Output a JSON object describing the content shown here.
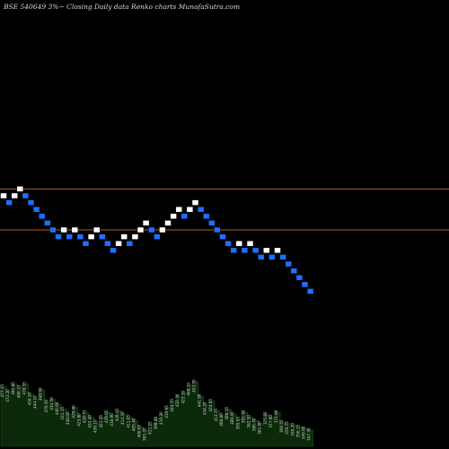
{
  "title": "BSE 540649 3%~  Closing Daily data  Renko  charts MunafaSutra.com",
  "chart_data": {
    "type": "renko",
    "title": "BSE 540649 3%~  Closing Daily data  Renko  charts MunafaSutra.com",
    "colors": {
      "up": "#ffffff",
      "down": "#1e6fff",
      "reference_line": "#b35b1e",
      "volume": "#0a2a0a"
    },
    "bricks": [
      {
        "level": 0,
        "dir": "up"
      },
      {
        "level": -1,
        "dir": "down"
      },
      {
        "level": 0,
        "dir": "up"
      },
      {
        "level": 1,
        "dir": "up"
      },
      {
        "level": 0,
        "dir": "down"
      },
      {
        "level": -1,
        "dir": "down"
      },
      {
        "level": -2,
        "dir": "down"
      },
      {
        "level": -3,
        "dir": "down"
      },
      {
        "level": -4,
        "dir": "down"
      },
      {
        "level": -5,
        "dir": "down"
      },
      {
        "level": -6,
        "dir": "down"
      },
      {
        "level": -5,
        "dir": "up"
      },
      {
        "level": -6,
        "dir": "down"
      },
      {
        "level": -5,
        "dir": "up"
      },
      {
        "level": -6,
        "dir": "down"
      },
      {
        "level": -7,
        "dir": "down"
      },
      {
        "level": -6,
        "dir": "up"
      },
      {
        "level": -5,
        "dir": "up"
      },
      {
        "level": -6,
        "dir": "down"
      },
      {
        "level": -7,
        "dir": "down"
      },
      {
        "level": -8,
        "dir": "down"
      },
      {
        "level": -7,
        "dir": "up"
      },
      {
        "level": -6,
        "dir": "up"
      },
      {
        "level": -7,
        "dir": "down"
      },
      {
        "level": -6,
        "dir": "up"
      },
      {
        "level": -5,
        "dir": "up"
      },
      {
        "level": -4,
        "dir": "up"
      },
      {
        "level": -5,
        "dir": "down"
      },
      {
        "level": -6,
        "dir": "down"
      },
      {
        "level": -5,
        "dir": "up"
      },
      {
        "level": -4,
        "dir": "up"
      },
      {
        "level": -3,
        "dir": "up"
      },
      {
        "level": -2,
        "dir": "up"
      },
      {
        "level": -3,
        "dir": "down"
      },
      {
        "level": -2,
        "dir": "up"
      },
      {
        "level": -1,
        "dir": "up"
      },
      {
        "level": -2,
        "dir": "down"
      },
      {
        "level": -3,
        "dir": "down"
      },
      {
        "level": -4,
        "dir": "down"
      },
      {
        "level": -5,
        "dir": "down"
      },
      {
        "level": -6,
        "dir": "down"
      },
      {
        "level": -7,
        "dir": "down"
      },
      {
        "level": -8,
        "dir": "down"
      },
      {
        "level": -7,
        "dir": "up"
      },
      {
        "level": -8,
        "dir": "down"
      },
      {
        "level": -7,
        "dir": "up"
      },
      {
        "level": -8,
        "dir": "down"
      },
      {
        "level": -9,
        "dir": "down"
      },
      {
        "level": -8,
        "dir": "up"
      },
      {
        "level": -9,
        "dir": "down"
      },
      {
        "level": -8,
        "dir": "up"
      },
      {
        "level": -9,
        "dir": "down"
      },
      {
        "level": -10,
        "dir": "down"
      },
      {
        "level": -11,
        "dir": "down"
      },
      {
        "level": -12,
        "dir": "down"
      },
      {
        "level": -13,
        "dir": "down"
      },
      {
        "level": -14,
        "dir": "down"
      }
    ],
    "reference_lines": [
      1,
      -5
    ],
    "volume": [
      74,
      68,
      77,
      73,
      77,
      64,
      60,
      70,
      55,
      58,
      52,
      46,
      40,
      48,
      38,
      42,
      36,
      30,
      36,
      42,
      38,
      44,
      40,
      36,
      32,
      24,
      20,
      28,
      34,
      40,
      48,
      56,
      62,
      66,
      76,
      80,
      62,
      52,
      56,
      44,
      38,
      46,
      40,
      34,
      42,
      36,
      32,
      28,
      40,
      36,
      42,
      30,
      28,
      26,
      24,
      22,
      20
    ],
    "volume_labels": [
      "477.25",
      "472.20",
      "481.85",
      "490.15",
      "470.55",
      "456.50",
      "444.10",
      "440.90",
      "476.50",
      "434.50",
      "440.00",
      "431.15",
      "440.00",
      "420.40",
      "423.80",
      "428.75",
      "432.40",
      "430.10",
      "421.35",
      "429.05",
      "418.90",
      "426.15",
      "414.30",
      "411.05",
      "405.40",
      "400.65",
      "395.20",
      "421.25",
      "399.40",
      "410.20",
      "416.95",
      "444.75",
      "432.30",
      "425.10",
      "448.15",
      "453.35",
      "441.90",
      "434.20",
      "424.05",
      "413.75",
      "408.80",
      "400.15",
      "389.40",
      "395.65",
      "392.30",
      "382.50",
      "386.70",
      "381.60",
      "375.85",
      "377.90",
      "371.90",
      "366.55",
      "359.75",
      "356.20",
      "356.15",
      "349.60",
      "347.30"
    ]
  }
}
